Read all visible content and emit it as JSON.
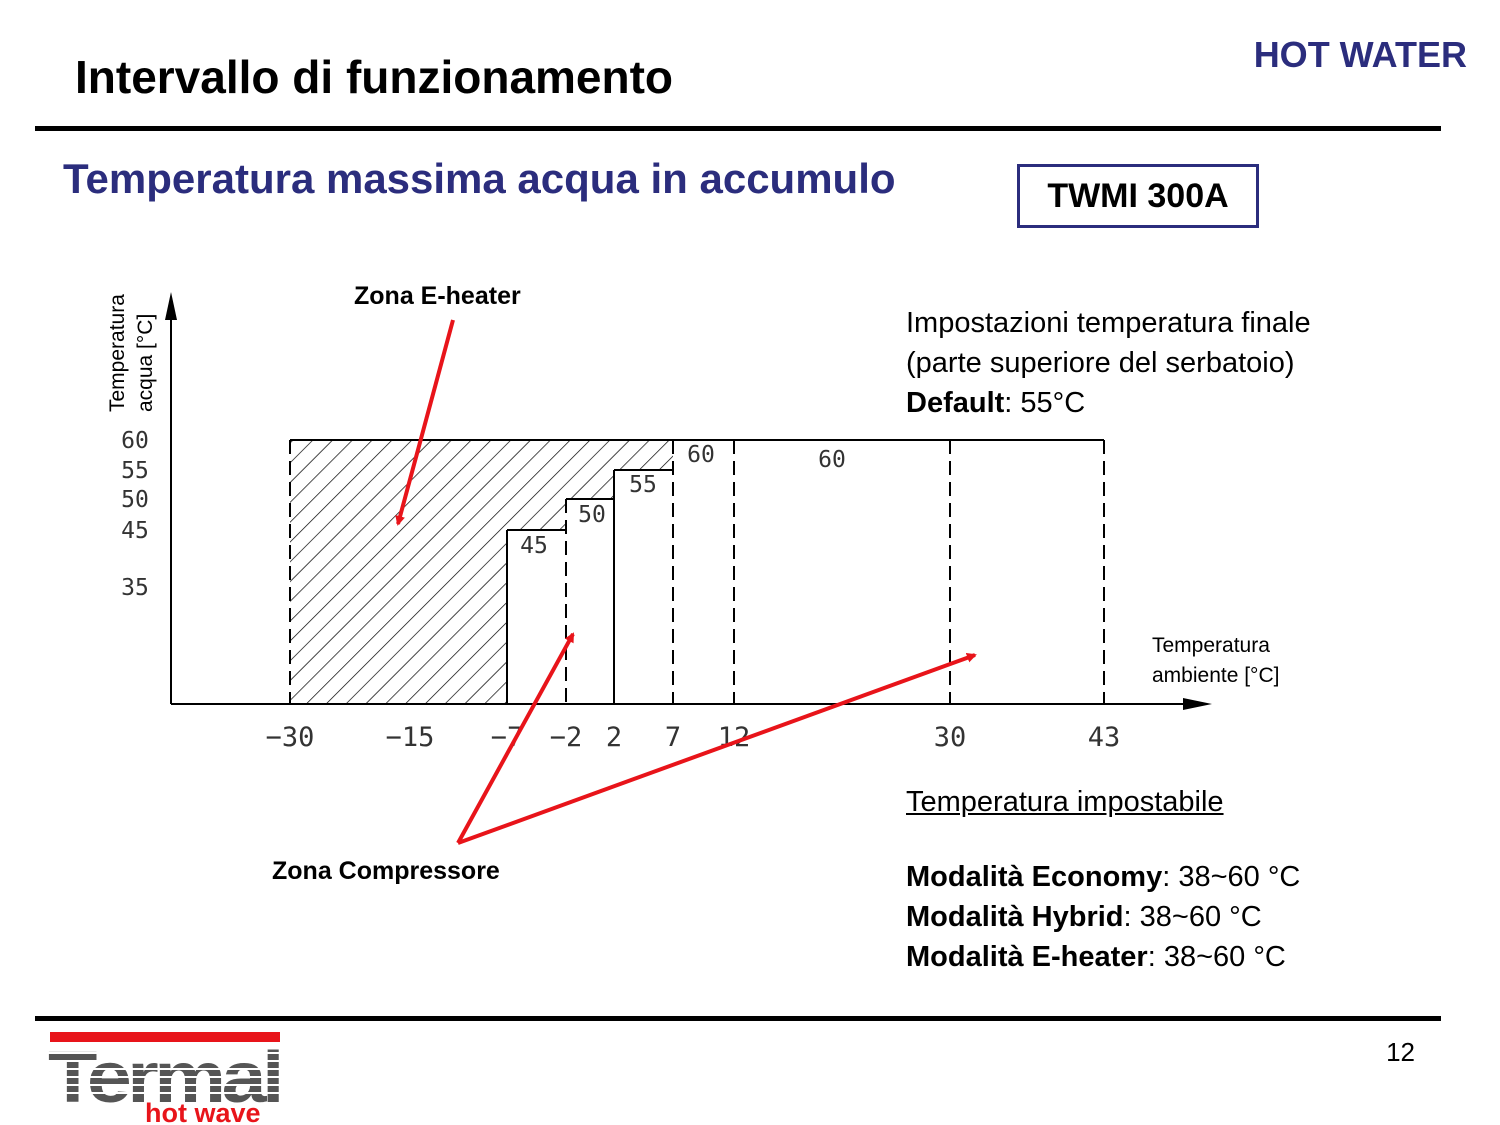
{
  "header": {
    "category": "HOT WATER",
    "title": "Intervallo di funzionamento",
    "subtitle": "Temperatura massima  acqua in accumulo",
    "model": "TWMI 300A"
  },
  "chart_data": {
    "type": "area",
    "ylabel_line1": "Temperatura",
    "ylabel_line2": "acqua [°C]",
    "xlabel_line1": "Temperatura",
    "xlabel_line2": "ambiente [°C]",
    "x_ticks": [
      "-30",
      "-15",
      "-7",
      "-2",
      "2",
      "7",
      "12",
      "30",
      "43"
    ],
    "y_ticks": [
      "60",
      "55",
      "50",
      "45",
      "35"
    ],
    "e_heater_zone": {
      "label": "Zona E-heater",
      "x_range": [
        -30,
        7
      ],
      "y_max": 60
    },
    "compressor_zone": {
      "label": "Zona Compressore",
      "steps": [
        {
          "x_range": [
            -7,
            -2
          ],
          "max_temp": 45,
          "label": "45"
        },
        {
          "x_range": [
            -2,
            2
          ],
          "max_temp": 50,
          "label": "50"
        },
        {
          "x_range": [
            2,
            7
          ],
          "max_temp": 55,
          "label": "55"
        },
        {
          "x_range": [
            7,
            12
          ],
          "max_temp": 60,
          "label": "60"
        },
        {
          "x_range": [
            12,
            43
          ],
          "max_temp": 60,
          "label": "60"
        }
      ]
    },
    "dashed_boundaries": [
      -30,
      -2,
      7,
      12,
      30,
      43
    ],
    "solid_boundaries": [
      -7,
      2
    ]
  },
  "info": {
    "setting_line1": "Impostazioni temperatura finale",
    "setting_line2": "(parte superiore del serbatoio)",
    "default_label": "Default",
    "default_value": ": 55°C",
    "settable_title": "Temperatura impostabile",
    "modes": [
      {
        "name": "Modalità Economy",
        "range": ": 38~60 °C"
      },
      {
        "name": "Modalità Hybrid",
        "range": ": 38~60 °C"
      },
      {
        "name": "Modalità E-heater",
        "range": ": 38~60 °C"
      }
    ]
  },
  "footer": {
    "page": "12",
    "logo_text": "Termal",
    "logo_sub": "hot wave"
  },
  "colors": {
    "accent": "#2b2d7d",
    "arrow": "#e8141a",
    "logo_red": "#e8141a"
  }
}
